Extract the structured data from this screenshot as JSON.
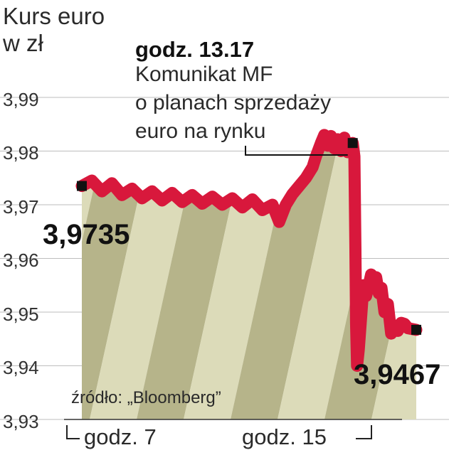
{
  "chart_data": {
    "type": "area",
    "title_lines": [
      "Kurs euro",
      "w zł"
    ],
    "y_ticks": [
      "3,99",
      "3,98",
      "3,97",
      "3,96",
      "3,95",
      "3,94",
      "3,93"
    ],
    "y_tick_values": [
      3.99,
      3.98,
      3.97,
      3.96,
      3.95,
      3.94,
      3.93
    ],
    "ylim": [
      3.93,
      3.995
    ],
    "x_labels": [
      "godz. 7",
      "godz. 15"
    ],
    "annotation": {
      "time": "godz. 13.17",
      "text_lines": [
        "Komunikat MF",
        "o planach sprzedaży",
        "euro na rynku"
      ]
    },
    "start_label": "3,9735",
    "end_label": "3,9467",
    "start_value": 3.9735,
    "end_value": 3.9467,
    "source": "źródło: „Bloomberg”",
    "series": [
      {
        "color": "#d8183c",
        "points": [
          [
            0.0,
            3.9735
          ],
          [
            0.03,
            3.9745
          ],
          [
            0.06,
            3.9725
          ],
          [
            0.09,
            3.974
          ],
          [
            0.12,
            3.9718
          ],
          [
            0.15,
            3.973
          ],
          [
            0.18,
            3.9712
          ],
          [
            0.21,
            3.9725
          ],
          [
            0.24,
            3.9708
          ],
          [
            0.27,
            3.9722
          ],
          [
            0.3,
            3.9705
          ],
          [
            0.33,
            3.9718
          ],
          [
            0.36,
            3.9702
          ],
          [
            0.39,
            3.9715
          ],
          [
            0.42,
            3.97
          ],
          [
            0.45,
            3.9712
          ],
          [
            0.48,
            3.9695
          ],
          [
            0.51,
            3.971
          ],
          [
            0.54,
            3.969
          ],
          [
            0.57,
            3.97
          ],
          [
            0.59,
            3.9668
          ],
          [
            0.61,
            3.97
          ],
          [
            0.63,
            3.972
          ],
          [
            0.65,
            3.9735
          ],
          [
            0.67,
            3.975
          ],
          [
            0.69,
            3.977
          ],
          [
            0.7,
            3.979
          ],
          [
            0.715,
            3.9815
          ],
          [
            0.725,
            3.983
          ],
          [
            0.735,
            3.981
          ],
          [
            0.745,
            3.9828
          ],
          [
            0.755,
            3.9805
          ],
          [
            0.765,
            3.9822
          ],
          [
            0.775,
            3.98
          ],
          [
            0.785,
            3.9825
          ],
          [
            0.795,
            3.9798
          ],
          [
            0.81,
            3.9815
          ],
          [
            0.815,
            3.979
          ],
          [
            0.818,
            3.962
          ],
          [
            0.82,
            3.948
          ],
          [
            0.823,
            3.94
          ],
          [
            0.828,
            3.943
          ],
          [
            0.835,
            3.949
          ],
          [
            0.842,
            3.955
          ],
          [
            0.85,
            3.953
          ],
          [
            0.858,
            3.955
          ],
          [
            0.865,
            3.957
          ],
          [
            0.872,
            3.9555
          ],
          [
            0.88,
            3.9565
          ],
          [
            0.888,
            3.9535
          ],
          [
            0.896,
            3.9545
          ],
          [
            0.905,
            3.95
          ],
          [
            0.915,
            3.9515
          ],
          [
            0.925,
            3.946
          ],
          [
            0.935,
            3.9475
          ],
          [
            0.945,
            3.9465
          ],
          [
            0.955,
            3.948
          ],
          [
            0.965,
            3.9478
          ],
          [
            0.975,
            3.947
          ],
          [
            1.0,
            3.9467
          ]
        ]
      }
    ]
  }
}
